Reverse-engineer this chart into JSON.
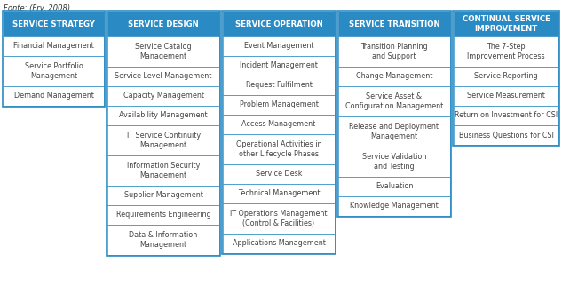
{
  "columns": [
    {
      "header": "SERVICE STRATEGY",
      "items": [
        "Financial Management",
        "Service Portfolio\nManagement",
        "Demand Management"
      ]
    },
    {
      "header": "SERVICE DESIGN",
      "items": [
        "Service Catalog\nManagement",
        "Service Level Management",
        "Capacity Management",
        "Availability Management",
        "IT Service Continuity\nManagement",
        "Information Security\nManagement",
        "Supplier Management",
        "Requirements Engineering",
        "Data & Information\nManagement"
      ]
    },
    {
      "header": "SERVICE OPERATION",
      "items": [
        "Event Management",
        "Incident Management",
        "Request Fulfilment",
        "Problem Management",
        "Access Management",
        "Operational Activities in\nother Lifecycle Phases",
        "Service Desk",
        "Technical Management",
        "IT Operations Management\n(Control & Facilities)",
        "Applications Management"
      ]
    },
    {
      "header": "SERVICE TRANSITION",
      "items": [
        "Transition Planning\nand Support",
        "Change Management",
        "Service Asset &\nConfiguration Management",
        "Release and Deployment\nManagement",
        "Service Validation\nand Testing",
        "Evaluation",
        "Knowledge Management"
      ]
    },
    {
      "header": "CONTINUAL SERVICE\nIMPROVEMENT",
      "items": [
        "The 7-Step\nImprovement Process",
        "Service Reporting",
        "Service Measurement",
        "Return on Investment for CSI",
        "Business Questions for CSI"
      ]
    }
  ],
  "header_bg": "#2a8ac4",
  "header_text_color": "#ffffff",
  "cell_bg": "#ffffff",
  "cell_text_color": "#444444",
  "border_color": "#2a8ac4",
  "outer_border_color": "#2a8ac4",
  "fig_bg": "#ffffff",
  "caption": "Fonte: (Fry, 2008)",
  "header_fontsize": 6.2,
  "item_fontsize": 5.8,
  "caption_fontsize": 6.0
}
